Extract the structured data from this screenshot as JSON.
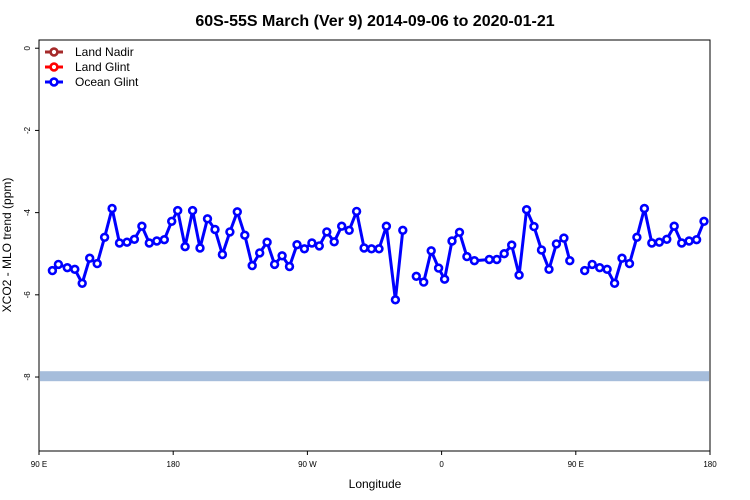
{
  "chart_data": {
    "type": "line",
    "title": "60S-55S March (Ver 9)   2014-09-06 to 2020-01-21",
    "xlabel": "Longitude",
    "ylabel": "XCO2 - MLO trend (ppm)",
    "xlim": [
      90,
      540
    ],
    "ylim": [
      -9.8,
      0.2
    ],
    "x_ticks": [
      {
        "value": 90,
        "label": "90 E"
      },
      {
        "value": 180,
        "label": "180"
      },
      {
        "value": 270,
        "label": "90 W"
      },
      {
        "value": 360,
        "label": "0"
      },
      {
        "value": 450,
        "label": "90 E"
      },
      {
        "value": 540,
        "label": "180"
      }
    ],
    "y_ticks": [
      {
        "value": 0,
        "label": "0"
      },
      {
        "value": -2,
        "label": "-2"
      },
      {
        "value": -4,
        "label": "-4"
      },
      {
        "value": -6,
        "label": "-6"
      },
      {
        "value": -8,
        "label": "-8"
      }
    ],
    "legend": {
      "placement": "top-left",
      "entries": [
        {
          "name": "Land Nadir",
          "color": "#a52a2a"
        },
        {
          "name": "Land Glint",
          "color": "#ff0000"
        },
        {
          "name": "Ocean Glint",
          "color": "#0000ff"
        }
      ]
    },
    "band": {
      "y": -7.98,
      "color": "#a6bddb"
    },
    "series": [
      {
        "name": "Ocean Glint",
        "color": "#0000ff",
        "segments": [
          [
            [
              99,
              -5.41
            ],
            [
              103,
              -5.26
            ],
            [
              109,
              -5.34
            ],
            [
              114,
              -5.38
            ],
            [
              119,
              -5.72
            ],
            [
              124,
              -5.11
            ],
            [
              129,
              -5.24
            ],
            [
              134,
              -4.6
            ],
            [
              139,
              -3.9
            ],
            [
              144,
              -4.74
            ],
            [
              149,
              -4.72
            ],
            [
              154,
              -4.65
            ],
            [
              159,
              -4.33
            ],
            [
              164,
              -4.74
            ],
            [
              169,
              -4.69
            ],
            [
              174,
              -4.66
            ],
            [
              179,
              -4.21
            ],
            [
              183,
              -3.95
            ],
            [
              188,
              -4.83
            ],
            [
              193,
              -3.95
            ],
            [
              198,
              -4.86
            ],
            [
              203,
              -4.15
            ],
            [
              208,
              -4.41
            ],
            [
              213,
              -5.02
            ],
            [
              218,
              -4.47
            ],
            [
              223,
              -3.98
            ],
            [
              228,
              -4.55
            ],
            [
              233,
              -5.29
            ],
            [
              238,
              -4.98
            ],
            [
              243,
              -4.72
            ],
            [
              248,
              -5.26
            ],
            [
              253,
              -5.05
            ],
            [
              258,
              -5.31
            ],
            [
              263,
              -4.78
            ],
            [
              268,
              -4.88
            ],
            [
              273,
              -4.74
            ],
            [
              278,
              -4.81
            ],
            [
              283,
              -4.47
            ],
            [
              288,
              -4.71
            ],
            [
              293,
              -4.33
            ],
            [
              298,
              -4.43
            ],
            [
              303,
              -3.97
            ],
            [
              308,
              -4.86
            ],
            [
              313,
              -4.88
            ],
            [
              318,
              -4.88
            ],
            [
              323,
              -4.33
            ],
            [
              329,
              -6.12
            ],
            [
              334,
              -4.43
            ]
          ],
          [
            [
              343,
              -5.55
            ],
            [
              348,
              -5.69
            ],
            [
              353,
              -4.93
            ],
            [
              358,
              -5.35
            ],
            [
              362,
              -5.62
            ],
            [
              367,
              -4.69
            ],
            [
              372,
              -4.48
            ],
            [
              377,
              -5.07
            ],
            [
              382,
              -5.17
            ],
            [
              392,
              -5.14
            ],
            [
              397,
              -5.14
            ],
            [
              402,
              -5.0
            ],
            [
              407,
              -4.79
            ],
            [
              412,
              -5.52
            ],
            [
              417,
              -3.93
            ],
            [
              422,
              -4.34
            ],
            [
              427,
              -4.91
            ],
            [
              432,
              -5.38
            ],
            [
              437,
              -4.76
            ],
            [
              442,
              -4.62
            ],
            [
              446,
              -5.17
            ]
          ],
          [
            [
              456,
              -5.41
            ],
            [
              461,
              -5.26
            ],
            [
              466,
              -5.34
            ],
            [
              471,
              -5.38
            ],
            [
              476,
              -5.72
            ],
            [
              481,
              -5.11
            ],
            [
              486,
              -5.24
            ],
            [
              491,
              -4.6
            ],
            [
              496,
              -3.9
            ],
            [
              501,
              -4.74
            ],
            [
              506,
              -4.72
            ],
            [
              511,
              -4.65
            ],
            [
              516,
              -4.33
            ],
            [
              521,
              -4.74
            ],
            [
              526,
              -4.69
            ],
            [
              531,
              -4.66
            ],
            [
              536,
              -4.21
            ]
          ]
        ]
      }
    ]
  }
}
